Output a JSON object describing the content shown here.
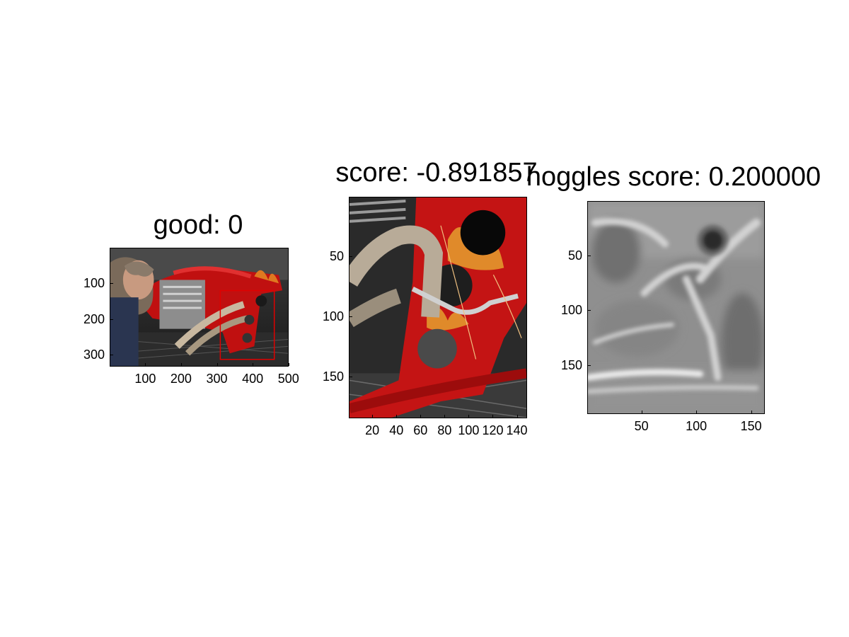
{
  "chart_data": [
    {
      "type": "image",
      "title": "good: 0",
      "image_desc": "red custom motorcycle with flame paint, man leaning over the chrome engine",
      "xlim": [
        0.5,
        500.5
      ],
      "ylim": [
        0.5,
        333.5
      ],
      "xticks": [
        100,
        200,
        300,
        400,
        500
      ],
      "yticks": [
        100,
        200,
        300
      ],
      "annotation_boxes": [
        {
          "color": "#e00000",
          "x": [
            310,
            462
          ],
          "y": [
            120,
            315
          ]
        }
      ]
    },
    {
      "type": "image",
      "title": "score: -0.891857",
      "image_desc": "crop of red motorcycle frame with flame paint and round cut-outs next to chrome exhaust pipe",
      "xlim": [
        0.5,
        148.5
      ],
      "ylim": [
        0.5,
        184.5
      ],
      "xticks": [
        20,
        40,
        60,
        80,
        100,
        120,
        140
      ],
      "yticks": [
        50,
        100,
        150
      ]
    },
    {
      "type": "heatmap",
      "title": "hoggles score: 0.200000",
      "colormap": "gray",
      "xlim": [
        0.5,
        162.5
      ],
      "ylim": [
        0.5,
        194.5
      ],
      "xticks": [
        50,
        100,
        150
      ],
      "yticks": [
        50,
        100,
        150
      ]
    }
  ]
}
